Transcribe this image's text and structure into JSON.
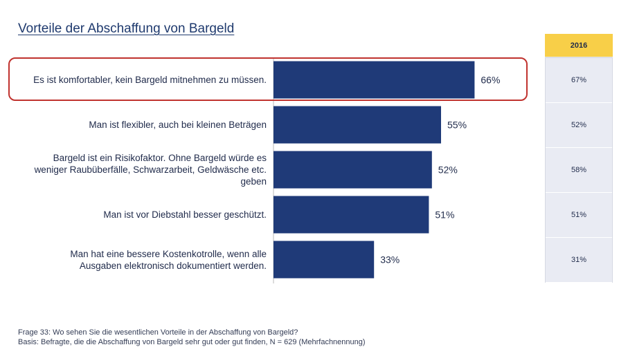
{
  "title": "Vorteile der Abschaffung von Bargeld",
  "chart_data": {
    "type": "bar",
    "orientation": "horizontal",
    "title": "Vorteile der Abschaffung von Bargeld",
    "categories": [
      "Es ist komfortabler, kein Bargeld mitnehmen zu müssen.",
      "Man ist flexibler, auch bei kleinen Beträgen",
      "Bargeld ist ein Risikofaktor. Ohne Bargeld würde es weniger Raubüberfälle, Schwarzarbeit, Geldwäsche etc. geben",
      "Man ist vor Diebstahl besser geschützt.",
      "Man hat eine bessere Kostenkotrolle, wenn alle Ausgaben elektronisch dokumentiert werden."
    ],
    "values": [
      66,
      55,
      52,
      51,
      33
    ],
    "value_labels": [
      "66%",
      "55%",
      "52%",
      "51%",
      "33%"
    ],
    "xlim": [
      0,
      100
    ],
    "bar_color": "#1f3a78",
    "highlighted_category_index": 0,
    "highlight_color": "#c0322e",
    "comparison": {
      "header": "2016",
      "header_color": "#f8cf48",
      "values": [
        67,
        52,
        58,
        51,
        31
      ],
      "value_labels": [
        "67%",
        "52%",
        "58%",
        "51%",
        "31%"
      ]
    }
  },
  "footnotes": [
    "Frage 33: Wo sehen Sie die wesentlichen Vorteile in der Abschaffung von Bargeld?",
    "Basis: Befragte, die die Abschaffung von Bargeld sehr gut oder gut finden, N = 629 (Mehrfachnennung)"
  ]
}
